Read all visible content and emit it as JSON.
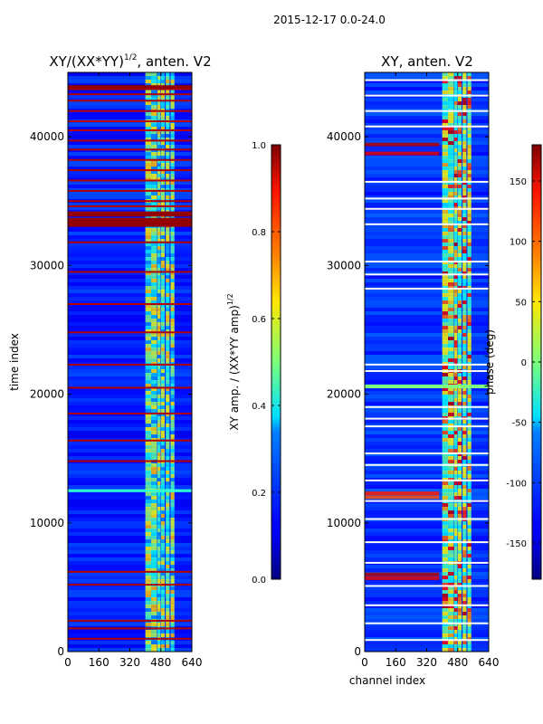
{
  "figure": {
    "suptitle": "2015-12-17 0.0-24.0"
  },
  "chart_data": [
    {
      "type": "heatmap",
      "title": "XY/(XX*YY)^(1/2), anten. V2",
      "title_main": "XY/(XX*YY)",
      "title_exp": "1/2",
      "title_suffix": ", anten. V2",
      "xlabel": "",
      "ylabel": "time index",
      "xlim": [
        0,
        640
      ],
      "ylim": [
        0,
        45000
      ],
      "xticks": [
        0,
        160,
        320,
        480,
        640
      ],
      "yticks": [
        0,
        10000,
        20000,
        30000,
        40000
      ],
      "colormap": "jet",
      "colorbar": {
        "label": "XY amp. / (XX*YY amp)^(1/2)",
        "label_main": "XY amp. / (XX*YY amp)",
        "label_exp": "1/2",
        "range": [
          0.0,
          1.0
        ],
        "ticks": [
          "0.0",
          "0.2",
          "0.4",
          "0.6",
          "0.8",
          "1.0"
        ]
      }
    },
    {
      "type": "heatmap",
      "title": "XY, anten. V2",
      "xlabel": "channel index",
      "ylabel": "",
      "xlim": [
        0,
        640
      ],
      "ylim": [
        0,
        45000
      ],
      "xticks": [
        0,
        160,
        320,
        480,
        640
      ],
      "yticks": [
        0,
        10000,
        20000,
        30000,
        40000
      ],
      "colormap": "jet",
      "colorbar": {
        "label": "phase (deg)",
        "range": [
          -180,
          180
        ],
        "ticks": [
          "-150",
          "-100",
          "-50",
          "0",
          "50",
          "100",
          "150"
        ]
      }
    }
  ]
}
